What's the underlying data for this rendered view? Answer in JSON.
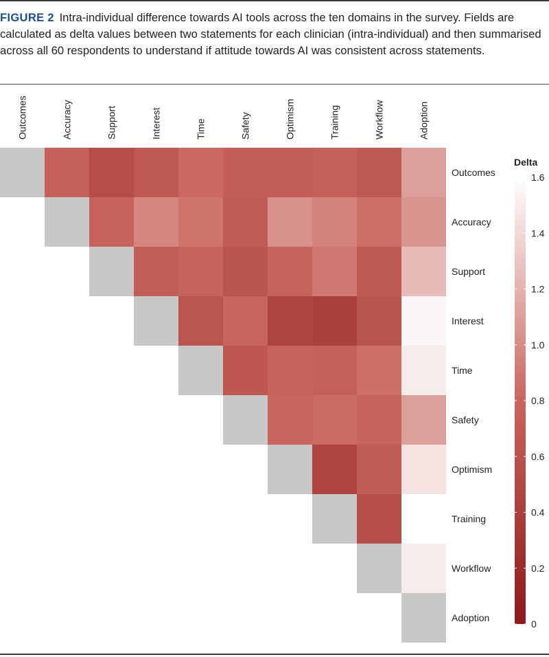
{
  "caption": {
    "label": "FIGURE 2",
    "text": "Intra-individual difference towards AI tools across the ten domains in the survey. Fields are calculated as delta values between two statements for each clinician (intra-individual) and then summarised across all 60 respondents to understand if attitude towards AI was consistent across statements."
  },
  "chart_data": {
    "type": "heatmap",
    "x_categories": [
      "Outcomes",
      "Accuracy",
      "Support",
      "Interest",
      "Time",
      "Safety",
      "Optimism",
      "Training",
      "Workflow",
      "Adoption"
    ],
    "y_categories": [
      "Outcomes",
      "Accuracy",
      "Support",
      "Interest",
      "Time",
      "Safety",
      "Optimism",
      "Training",
      "Workflow",
      "Adoption"
    ],
    "values": [
      [
        null,
        0.75,
        0.55,
        0.68,
        0.82,
        0.72,
        0.72,
        0.75,
        0.67,
        1.1
      ],
      [
        null,
        null,
        0.77,
        0.97,
        0.88,
        0.7,
        1.03,
        0.95,
        0.85,
        1.05
      ],
      [
        null,
        null,
        null,
        0.73,
        0.78,
        0.62,
        0.78,
        0.9,
        0.68,
        1.25
      ],
      [
        null,
        null,
        null,
        null,
        0.63,
        0.8,
        0.45,
        0.42,
        0.62,
        1.55
      ],
      [
        null,
        null,
        null,
        null,
        null,
        0.65,
        0.78,
        0.75,
        0.85,
        1.5
      ],
      [
        null,
        null,
        null,
        null,
        null,
        null,
        0.8,
        0.83,
        0.78,
        1.1
      ],
      [
        null,
        null,
        null,
        null,
        null,
        null,
        null,
        0.45,
        0.7,
        1.45
      ],
      [
        null,
        null,
        null,
        null,
        null,
        null,
        null,
        null,
        0.58,
        1.6
      ],
      [
        null,
        null,
        null,
        null,
        null,
        null,
        null,
        null,
        null,
        1.5
      ],
      [
        null,
        null,
        null,
        null,
        null,
        null,
        null,
        null,
        null,
        null
      ]
    ],
    "legend": {
      "title": "Delta",
      "min": 0,
      "max": 1.6,
      "ticks": [
        "1.6",
        "1.4",
        "1.2",
        "1.0",
        "0.8",
        "0.6",
        "0.4",
        "0.2",
        "0"
      ],
      "low_color": "#8b1a1a",
      "mid_color": "#c8655d",
      "high_color": "#ffffff",
      "diagonal_color": "#c8c8c8"
    }
  }
}
